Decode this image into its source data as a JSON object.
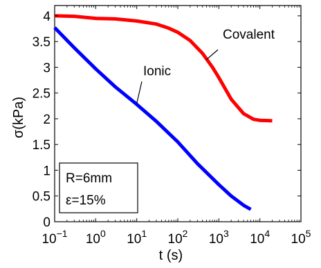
{
  "chart_data": {
    "type": "line",
    "xlabel": "t (s)",
    "ylabel": "σ(kPa)",
    "x_scale": "log",
    "xlim": [
      0.1,
      100000
    ],
    "ylim": [
      0,
      4.2
    ],
    "grid": false,
    "x_ticks": [
      {
        "value": 0.1,
        "base": "10",
        "exp": "−1"
      },
      {
        "value": 1,
        "base": "10",
        "exp": "0"
      },
      {
        "value": 10,
        "base": "10",
        "exp": "1"
      },
      {
        "value": 100,
        "base": "10",
        "exp": "2"
      },
      {
        "value": 1000,
        "base": "10",
        "exp": "3"
      },
      {
        "value": 10000,
        "base": "10",
        "exp": "4"
      },
      {
        "value": 100000,
        "base": "10",
        "exp": "5"
      }
    ],
    "y_ticks": [
      {
        "value": 0,
        "label": "0"
      },
      {
        "value": 0.5,
        "label": "0.5"
      },
      {
        "value": 1,
        "label": "1"
      },
      {
        "value": 1.5,
        "label": "1.5"
      },
      {
        "value": 2,
        "label": "2"
      },
      {
        "value": 2.5,
        "label": "2.5"
      },
      {
        "value": 3,
        "label": "3"
      },
      {
        "value": 3.5,
        "label": "3.5"
      },
      {
        "value": 4,
        "label": "4"
      }
    ],
    "series": [
      {
        "name": "Covalent",
        "color": "#ff0000",
        "points": [
          [
            0.1,
            4.0
          ],
          [
            0.3,
            3.99
          ],
          [
            1,
            3.95
          ],
          [
            3,
            3.94
          ],
          [
            10,
            3.9
          ],
          [
            30,
            3.84
          ],
          [
            60,
            3.76
          ],
          [
            100,
            3.68
          ],
          [
            200,
            3.52
          ],
          [
            400,
            3.27
          ],
          [
            700,
            3.0
          ],
          [
            1000,
            2.8
          ],
          [
            2000,
            2.38
          ],
          [
            4000,
            2.1
          ],
          [
            7000,
            1.99
          ],
          [
            10000,
            1.97
          ],
          [
            20000,
            1.96
          ]
        ]
      },
      {
        "name": "Ionic",
        "color": "#0000ff",
        "points": [
          [
            0.1,
            3.77
          ],
          [
            0.3,
            3.38
          ],
          [
            1,
            2.97
          ],
          [
            3,
            2.62
          ],
          [
            10,
            2.28
          ],
          [
            30,
            1.95
          ],
          [
            100,
            1.55
          ],
          [
            300,
            1.13
          ],
          [
            1000,
            0.72
          ],
          [
            2000,
            0.5
          ],
          [
            4000,
            0.32
          ],
          [
            6000,
            0.24
          ]
        ]
      }
    ],
    "annotations": [
      {
        "text": "Covalent",
        "series": "Covalent",
        "point": [
          500,
          3.15
        ]
      },
      {
        "text": "Ionic",
        "series": "Ionic",
        "point": [
          10,
          2.3
        ]
      }
    ],
    "legend_box": {
      "line1": "R=6mm",
      "line2": "ε=15%"
    }
  }
}
